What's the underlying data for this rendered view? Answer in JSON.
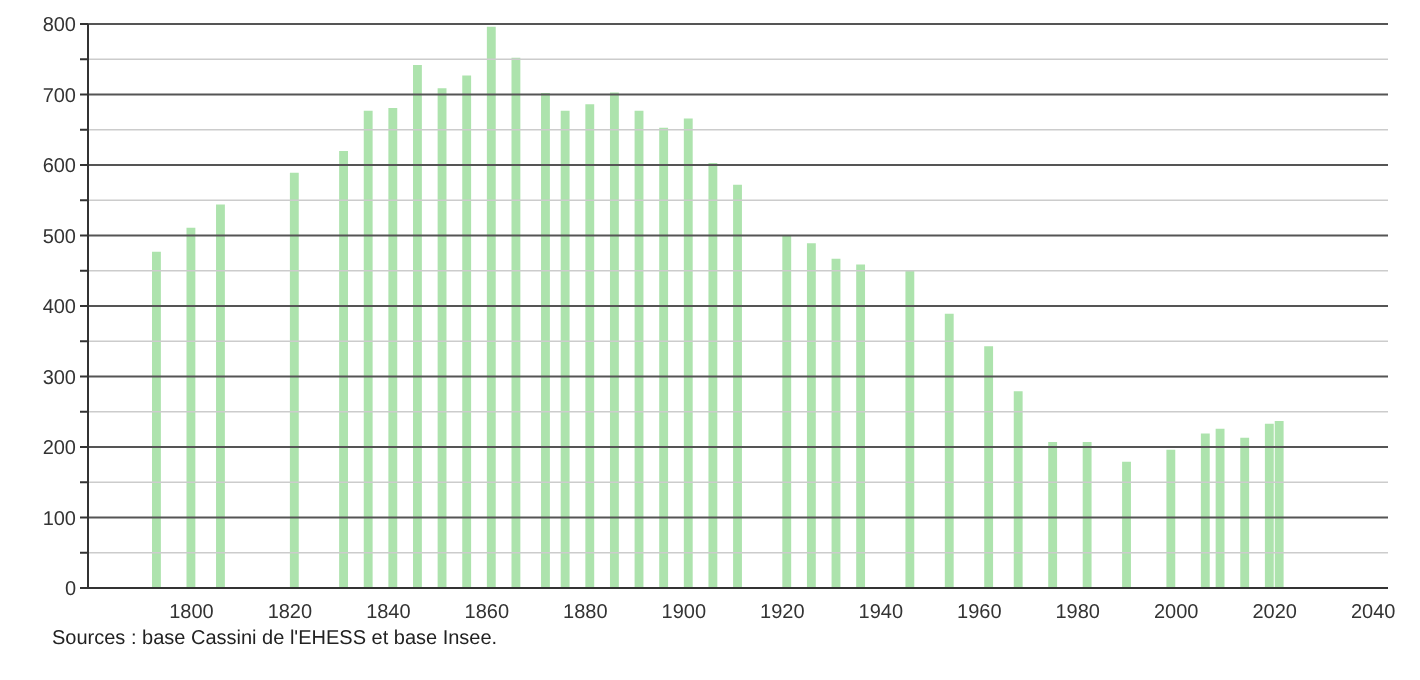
{
  "chart_data": {
    "type": "bar",
    "x": [
      1793,
      1800,
      1806,
      1821,
      1831,
      1836,
      1841,
      1846,
      1851,
      1856,
      1861,
      1866,
      1872,
      1876,
      1881,
      1886,
      1891,
      1896,
      1901,
      1906,
      1911,
      1921,
      1926,
      1931,
      1936,
      1946,
      1954,
      1962,
      1968,
      1975,
      1982,
      1990,
      1999,
      2006,
      2009,
      2014,
      2019,
      2021
    ],
    "values": [
      477,
      511,
      544,
      589,
      620,
      677,
      681,
      742,
      709,
      727,
      796,
      752,
      702,
      677,
      686,
      703,
      677,
      653,
      666,
      603,
      572,
      500,
      489,
      467,
      459,
      450,
      389,
      343,
      279,
      207,
      207,
      179,
      196,
      219,
      226,
      213,
      233,
      237
    ],
    "color": "#ade3ad",
    "xlim": [
      1779,
      2043
    ],
    "xticks": [
      1800,
      1820,
      1840,
      1860,
      1880,
      1900,
      1920,
      1940,
      1960,
      1980,
      2000,
      2020,
      2040
    ],
    "ylim": [
      0,
      800
    ],
    "yticks": [
      0,
      {
        "value": 50,
        "label": null
      },
      100,
      {
        "value": 150,
        "label": null
      },
      200,
      {
        "value": 250,
        "label": null
      },
      300,
      {
        "value": 350,
        "label": null
      },
      400,
      {
        "value": 450,
        "label": null
      },
      500,
      {
        "value": 550,
        "label": null
      },
      600,
      {
        "value": 650,
        "label": null
      },
      700,
      {
        "value": 750,
        "label": null
      },
      800
    ],
    "grid": "y",
    "annotations": [
      "Sources : base Cassini de l'EHESS et base Insee."
    ]
  }
}
